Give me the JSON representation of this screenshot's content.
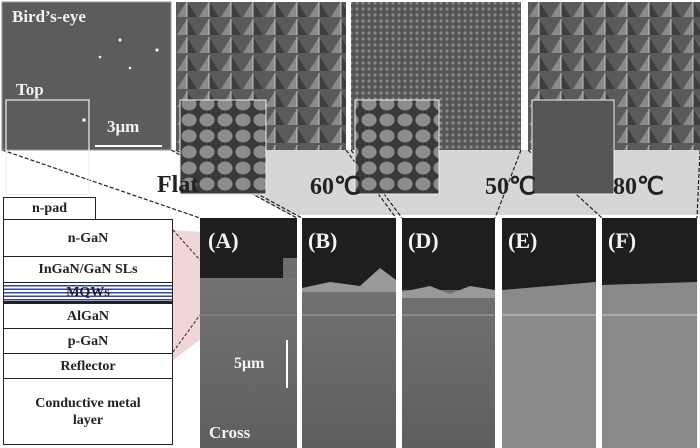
{
  "top_images": {
    "label": "Bird’s-eye",
    "inset_label": "Top",
    "scale": "3μm"
  },
  "conditions": [
    "Flat",
    "60℃",
    "50℃",
    "80℃"
  ],
  "panels": [
    "(A)",
    "(B)",
    "(D)",
    "(E)",
    "(F)"
  ],
  "cross": {
    "label": "Cross",
    "scale": "5μm"
  },
  "layers": {
    "npad": "n-pad",
    "ngan": "n-GaN",
    "sls": "InGaN/GaN SLs",
    "mqw": "MQWs",
    "algan": "AlGaN",
    "pgan": "p-GaN",
    "reflector": "Reflector",
    "metal": "Conductive metal layer"
  },
  "colors": {
    "mqw_lines": "#3344aa",
    "band": "#d6d6d6",
    "zoom_wedge": "#f0d6d6"
  }
}
